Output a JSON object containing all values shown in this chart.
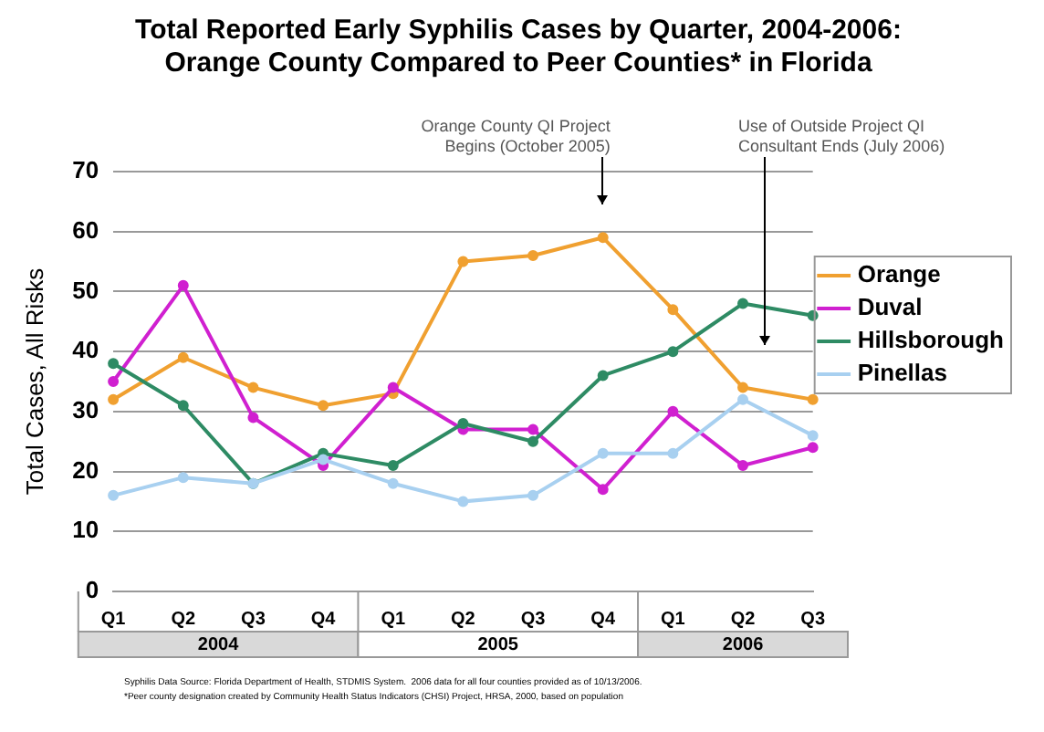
{
  "chart_data": {
    "type": "line",
    "title": "Total Reported Early Syphilis Cases by Quarter, 2004-2006:\nOrange County Compared to Peer Counties* in Florida",
    "ylabel": "Total Cases, All Risks",
    "categories": [
      "Q1",
      "Q2",
      "Q3",
      "Q4",
      "Q1",
      "Q2",
      "Q3",
      "Q4",
      "Q1",
      "Q2",
      "Q3"
    ],
    "series": [
      {
        "name": "Orange",
        "color": "#f0a030",
        "values": [
          32,
          39,
          34,
          31,
          33,
          55,
          56,
          59,
          47,
          34,
          32
        ]
      },
      {
        "name": "Duval",
        "color": "#d020d0",
        "values": [
          35,
          51,
          29,
          21,
          34,
          27,
          27,
          17,
          30,
          21,
          24
        ]
      },
      {
        "name": "Hillsborough",
        "color": "#2e8b64",
        "values": [
          38,
          31,
          18,
          23,
          21,
          28,
          25,
          36,
          40,
          48,
          46
        ]
      },
      {
        "name": "Pinellas",
        "color": "#a8d0f0",
        "values": [
          16,
          19,
          18,
          22,
          18,
          15,
          16,
          23,
          23,
          32,
          26
        ]
      }
    ],
    "ylim": [
      0,
      70
    ],
    "yticks": [
      0,
      10,
      20,
      30,
      40,
      50,
      60,
      70
    ],
    "grid": "y",
    "legend": "right",
    "marker": "circle",
    "line_style": "solid",
    "annotations": [
      "Orange County QI Project\nBegins (October 2005)",
      "Use of Outside Project QI\nConsultant Ends (July 2006)",
      "2004",
      "2005",
      "2006",
      "Syphilis Data Source: Florida Department of Health, STDMIS System.  2006 data for all four counties provided as of 10/13/2006.",
      "*Peer county designation created by Community Health Status Indicators (CHSI) Project, HRSA, 2000, based on population"
    ]
  }
}
